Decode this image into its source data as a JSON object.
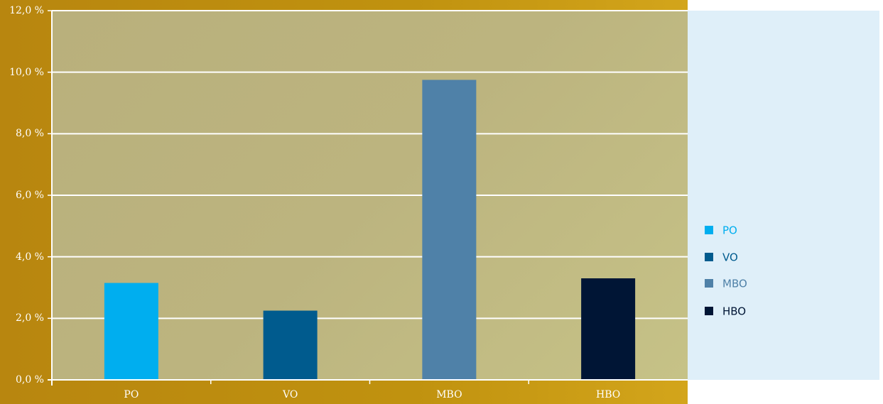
{
  "chart_data": {
    "type": "bar",
    "categories": [
      "PO",
      "VO",
      "MBO",
      "HBO"
    ],
    "values": [
      3.15,
      2.25,
      9.75,
      3.3
    ],
    "unit": "%",
    "ylim": [
      0,
      12
    ],
    "yticks": [
      0,
      2,
      4,
      6,
      8,
      10,
      12
    ],
    "ytick_labels": [
      "0,0 %",
      "2,0 %",
      "4,0 %",
      "6,0 %",
      "8,0 %",
      "10,0 %",
      "12,0 %"
    ],
    "grid": true,
    "legend_placement": "right",
    "colors": [
      "#00aeef",
      "#005b8e",
      "#4f81a8",
      "#001535"
    ],
    "legend": [
      {
        "label": "PO",
        "color": "#00aeef",
        "text_color": "#00aeef"
      },
      {
        "label": "VO",
        "color": "#005b8e",
        "text_color": "#005b8e"
      },
      {
        "label": "MBO",
        "color": "#4f81a8",
        "text_color": "#4f81a8"
      },
      {
        "label": "HBO",
        "color": "#001535",
        "text_color": "#001535"
      }
    ]
  }
}
